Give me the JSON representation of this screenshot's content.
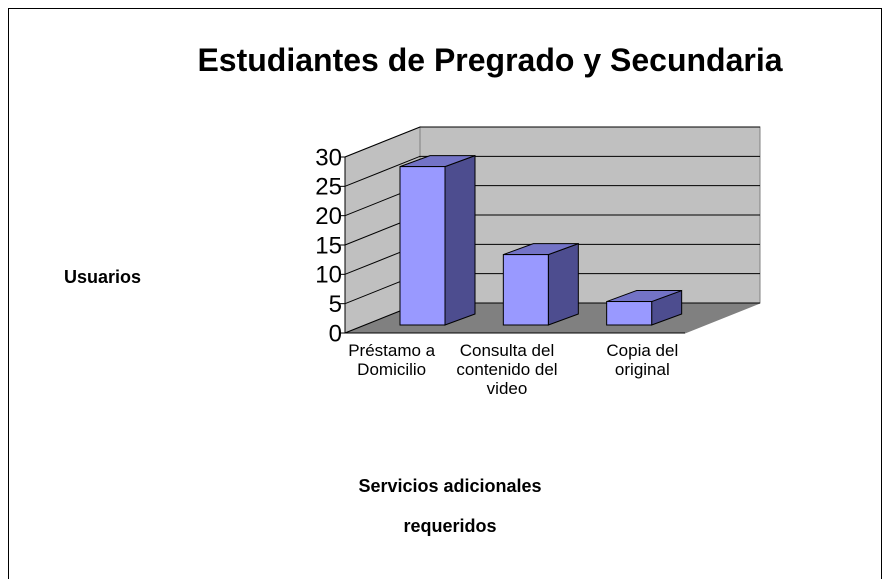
{
  "chart_data": {
    "type": "bar3d",
    "title": "Estudiantes de Pregrado y Secundaria",
    "y_label": "Usuarios",
    "x_label": "Servicios adicionales requeridos",
    "categories": [
      "Préstamo a Domicilio",
      "Consulta del contenido del video",
      "Copia del original"
    ],
    "values": [
      27,
      12,
      4
    ],
    "color": "#9999ff",
    "ylim": [
      0,
      30
    ],
    "yticks": [
      0,
      5,
      10,
      15,
      20,
      25,
      30
    ],
    "grid": true
  }
}
